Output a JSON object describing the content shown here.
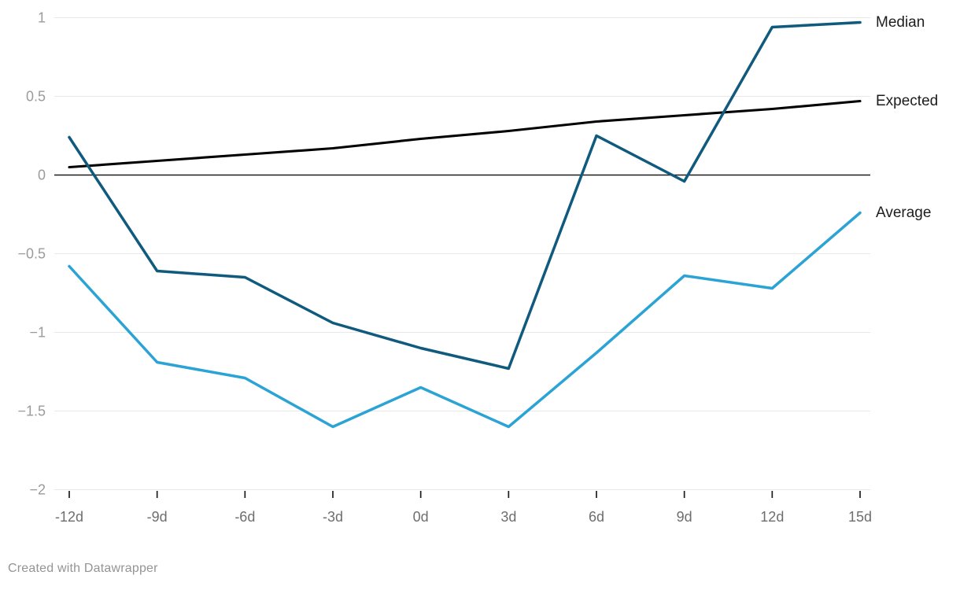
{
  "chart_data": {
    "type": "line",
    "title": "",
    "xlabel": "",
    "ylabel": "",
    "x_labels": [
      "-12d",
      "-9d",
      "-6d",
      "-3d",
      "0d",
      "3d",
      "6d",
      "9d",
      "12d",
      "15d"
    ],
    "x_values": [
      -12,
      -9,
      -6,
      -3,
      0,
      3,
      6,
      9,
      12,
      15
    ],
    "series": [
      {
        "name": "Median",
        "color": "#0f5a7d",
        "values": [
          0.24,
          -0.61,
          -0.65,
          -0.94,
          -1.1,
          -1.23,
          0.25,
          -0.04,
          0.94,
          0.97
        ]
      },
      {
        "name": "Expected",
        "color": "#000000",
        "values": [
          0.05,
          0.09,
          0.13,
          0.17,
          0.23,
          0.28,
          0.34,
          0.38,
          0.42,
          0.47
        ]
      },
      {
        "name": "Average",
        "color": "#2ba3d4",
        "values": [
          -0.58,
          -1.19,
          -1.29,
          -1.6,
          -1.35,
          -1.6,
          -1.13,
          -0.64,
          -0.72,
          -0.24
        ]
      }
    ],
    "y_ticks": [
      1,
      0.5,
      0,
      -0.5,
      -1,
      -1.5,
      -2
    ],
    "y_tick_labels": [
      "1",
      "0.5",
      "0",
      "−0.5",
      "−1",
      "−1.5",
      "−2"
    ],
    "ylim": [
      -2,
      1
    ],
    "grid": true,
    "zero_baseline": true,
    "legend_position": "right-inline"
  },
  "colors": {
    "grid": "#e8e8e8",
    "axis": "#1d1d1d",
    "y_label": "#9b9b9b",
    "x_label": "#6e6e6e",
    "series_label": "#1d1d1d",
    "background": "#ffffff"
  },
  "footer": {
    "credit": "Created with Datawrapper"
  }
}
